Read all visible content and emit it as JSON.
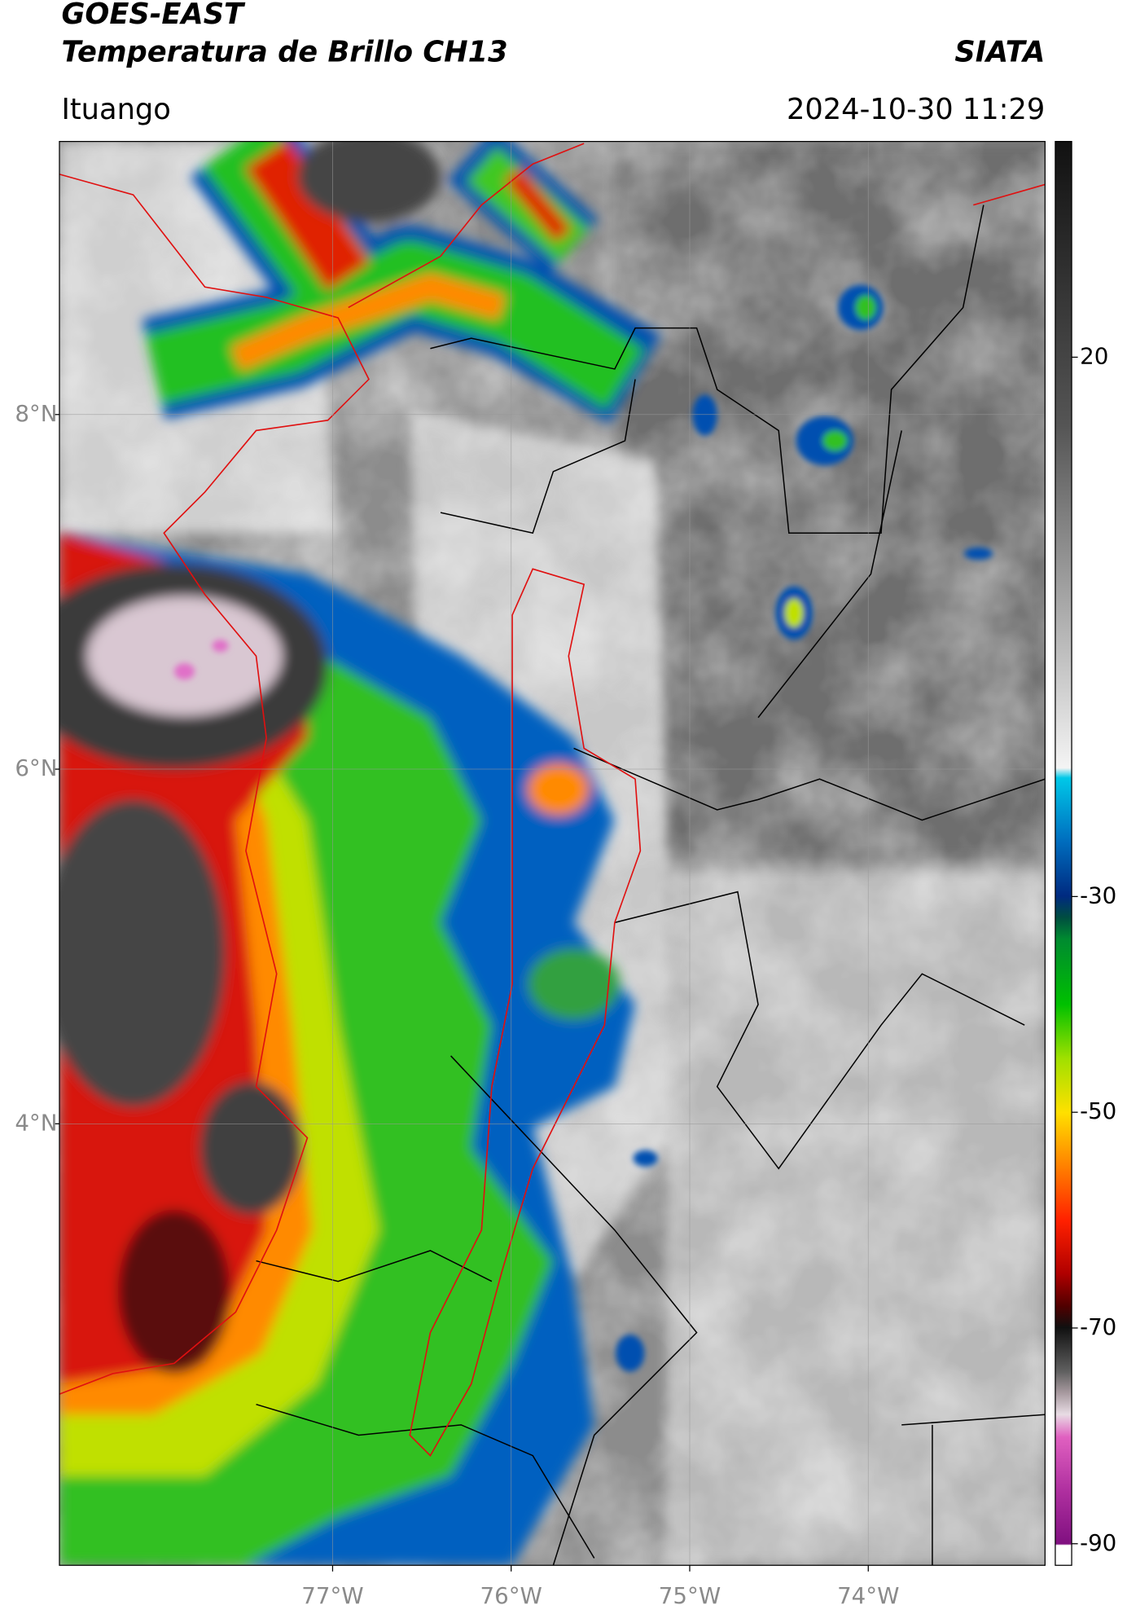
{
  "header": {
    "title_line1": "GOES-EAST",
    "title_line2": "Temperatura de Brillo CH13",
    "agency": "SIATA",
    "location": "Ituango",
    "datetime": "2024-10-30 11:29"
  },
  "map": {
    "xlim": [
      -78.53,
      -73.01
    ],
    "ylim": [
      1.51,
      9.54
    ],
    "xticks": [
      {
        "value": -77,
        "label": "77°W"
      },
      {
        "value": -76,
        "label": "76°W"
      },
      {
        "value": -75,
        "label": "75°W"
      },
      {
        "value": -74,
        "label": "74°W"
      }
    ],
    "yticks": [
      {
        "value": 8,
        "label": "8°N"
      },
      {
        "value": 6,
        "label": "6°N"
      },
      {
        "value": 4,
        "label": "4°N"
      }
    ],
    "grid": true
  },
  "colorbar": {
    "lim": [
      -92,
      40
    ],
    "ticks": [
      20,
      -30,
      -50,
      -70,
      -90
    ]
  }
}
